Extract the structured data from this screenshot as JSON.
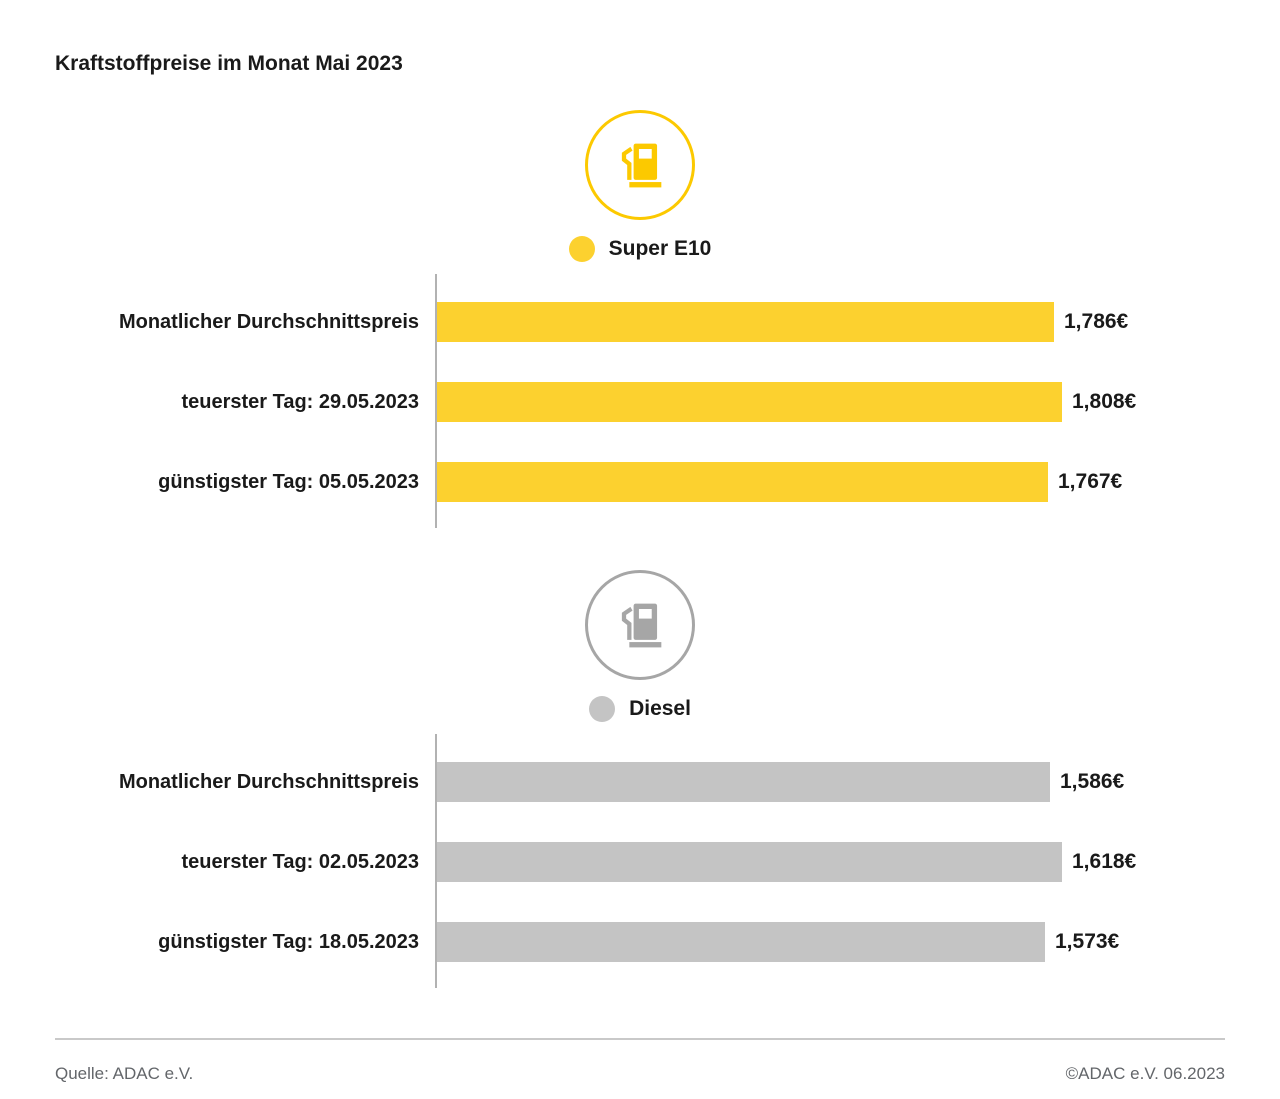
{
  "title": "Kraftstoffpreise im Monat Mai 2023",
  "footer": {
    "source": "Quelle: ADAC e.V.",
    "copyright": "©ADAC e.V. 06.2023"
  },
  "axis_color": "#b2b2b2",
  "chart_data": [
    {
      "type": "bar",
      "orientation": "horizontal",
      "legend": "Super E10",
      "color": "#FCD12F",
      "icon_color": "#FCC900",
      "categories": [
        "Monatlicher Durchschnittspreis",
        "teuerster Tag: 29.05.2023",
        "günstigster Tag: 05.05.2023"
      ],
      "values": [
        1.786,
        1.808,
        1.767
      ],
      "value_labels": [
        "1,786€",
        "1,808€",
        "1,767€"
      ],
      "xlim": [
        0,
        1.808
      ],
      "grid": false,
      "legend_position": "top-center"
    },
    {
      "type": "bar",
      "orientation": "horizontal",
      "legend": "Diesel",
      "color": "#C4C4C4",
      "icon_color": "#A6A6A6",
      "categories": [
        "Monatlicher Durchschnittspreis",
        "teuerster Tag: 02.05.2023",
        "günstigster Tag: 18.05.2023"
      ],
      "values": [
        1.586,
        1.618,
        1.573
      ],
      "value_labels": [
        "1,586€",
        "1,618€",
        "1,573€"
      ],
      "xlim": [
        0,
        1.618
      ],
      "grid": false,
      "legend_position": "top-center"
    }
  ]
}
